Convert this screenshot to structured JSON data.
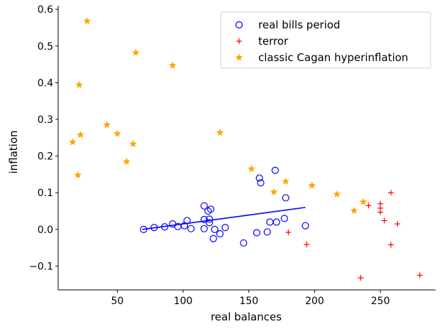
{
  "chart_data": {
    "type": "scatter",
    "xlabel": "real balances",
    "ylabel": "inflation",
    "xlim": [
      5,
      292
    ],
    "ylim": [
      -0.165,
      0.61
    ],
    "xticks": [
      50,
      100,
      150,
      200,
      250
    ],
    "yticks": [
      -0.1,
      0.0,
      0.1,
      0.2,
      0.3,
      0.4,
      0.5,
      0.6
    ],
    "xtick_labels": [
      "50",
      "100",
      "150",
      "200",
      "250"
    ],
    "ytick_labels": [
      "−0.1",
      "0.0",
      "0.1",
      "0.2",
      "0.3",
      "0.4",
      "0.5",
      "0.6"
    ],
    "grid": false,
    "legend_position": "top-right",
    "series": [
      {
        "name": "real bills period",
        "marker": "open-circle",
        "color": "#0000ff",
        "points": [
          [
            70,
            0.0
          ],
          [
            78,
            0.005
          ],
          [
            86,
            0.007
          ],
          [
            92,
            0.015
          ],
          [
            96,
            0.008
          ],
          [
            101,
            0.01
          ],
          [
            103,
            0.024
          ],
          [
            106,
            0.002
          ],
          [
            116,
            0.064
          ],
          [
            116,
            0.027
          ],
          [
            116,
            0.002
          ],
          [
            119,
            0.05
          ],
          [
            120,
            0.028
          ],
          [
            120,
            0.018
          ],
          [
            121,
            0.055
          ],
          [
            123,
            -0.025
          ],
          [
            124,
            0.0
          ],
          [
            128,
            -0.012
          ],
          [
            132,
            0.005
          ],
          [
            146,
            -0.037
          ],
          [
            156,
            -0.009
          ],
          [
            158,
            0.14
          ],
          [
            159,
            0.127
          ],
          [
            164,
            -0.007
          ],
          [
            166,
            0.02
          ],
          [
            170,
            0.161
          ],
          [
            171,
            0.02
          ],
          [
            177,
            0.03
          ],
          [
            178,
            0.086
          ],
          [
            193,
            0.01
          ]
        ]
      },
      {
        "name": "terror",
        "marker": "plus",
        "color": "#ff0000",
        "points": [
          [
            180,
            -0.008
          ],
          [
            194,
            -0.041
          ],
          [
            235,
            -0.132
          ],
          [
            241,
            0.065
          ],
          [
            250,
            0.07
          ],
          [
            250,
            0.058
          ],
          [
            250,
            0.047
          ],
          [
            253,
            0.024
          ],
          [
            258,
            0.1
          ],
          [
            258,
            -0.042
          ],
          [
            263,
            0.015
          ],
          [
            280,
            -0.125
          ]
        ]
      },
      {
        "name": "classic Cagan hyperinflation",
        "marker": "star",
        "color": "#ffa500",
        "points": [
          [
            27,
            0.568
          ],
          [
            64,
            0.482
          ],
          [
            92,
            0.447
          ],
          [
            21,
            0.394
          ],
          [
            42,
            0.285
          ],
          [
            128,
            0.264
          ],
          [
            50,
            0.261
          ],
          [
            22,
            0.258
          ],
          [
            16,
            0.238
          ],
          [
            62,
            0.233
          ],
          [
            57,
            0.185
          ],
          [
            152,
            0.165
          ],
          [
            20,
            0.148
          ],
          [
            178,
            0.131
          ],
          [
            198,
            0.12
          ],
          [
            169,
            0.102
          ],
          [
            217,
            0.096
          ],
          [
            237,
            0.075
          ],
          [
            230,
            0.051
          ]
        ]
      }
    ],
    "fit_line": {
      "color": "#0000ff",
      "x": [
        69,
        193
      ],
      "y": [
        0.0,
        0.06
      ]
    }
  }
}
